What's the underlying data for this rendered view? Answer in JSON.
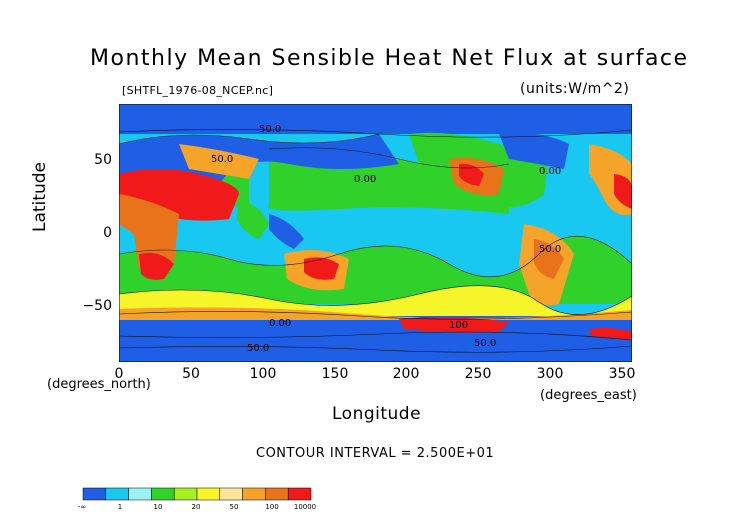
{
  "title": "Monthly Mean Sensible Heat Net Flux at surface",
  "file_label": "[SHTFL_1976-08_NCEP.nc]",
  "units_label": "(units:W/m^2)",
  "axes": {
    "xlabel": "Longitude",
    "ylabel": "Latitude",
    "x_unit_label": "(degrees_east)",
    "y_unit_label": "(degrees_north)",
    "x_ticks": [
      "0",
      "50",
      "100",
      "150",
      "200",
      "250",
      "300",
      "350"
    ],
    "y_ticks": [
      "50",
      "0",
      "−50"
    ]
  },
  "contour_interval": "CONTOUR INTERVAL = 2.500E+01",
  "map_annotations": {
    "a1": "50.0",
    "a2": "0.00",
    "a3": "50.0",
    "a4": "0.00",
    "a5": "0.00",
    "a6": "50.0",
    "a7": "100",
    "a8": "50.0",
    "a9": "50.0"
  },
  "colorbar": {
    "labels": [
      "-∞",
      "1",
      "10",
      "20",
      "50",
      "100",
      "10000"
    ],
    "colors": [
      "#1f5fe6",
      "#19c8f0",
      "#9bf2f5",
      "#2fd12a",
      "#a7ef20",
      "#f5f52a",
      "#fde69a",
      "#f5a42a",
      "#e8731a",
      "#f01a1a"
    ]
  },
  "chart_data": {
    "type": "heatmap",
    "title": "Monthly Mean Sensible Heat Net Flux at surface",
    "subtitle": "[SHTFL_1976-08_NCEP.nc]",
    "xlabel": "Longitude",
    "ylabel": "Latitude",
    "units": "(units:W/m^2)",
    "xlim": [
      0,
      357
    ],
    "ylim": [
      -90,
      90
    ],
    "x_ticks": [
      0,
      50,
      100,
      150,
      200,
      250,
      300,
      350
    ],
    "y_ticks": [
      50,
      0,
      -50
    ],
    "color_levels": [
      "-∞",
      "1",
      "10",
      "20",
      "50",
      "100",
      "10000"
    ],
    "contour_interval": 25,
    "grid": false
  }
}
